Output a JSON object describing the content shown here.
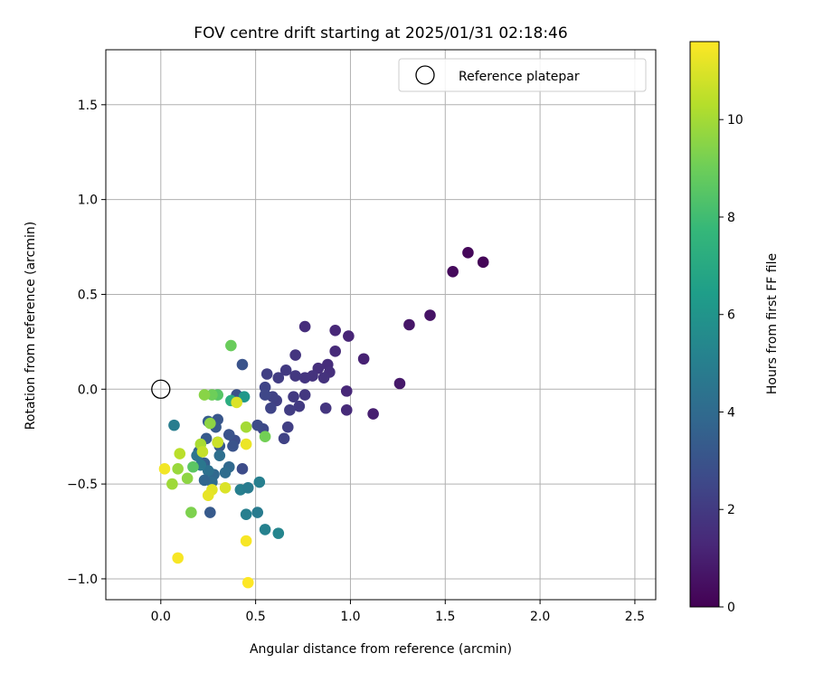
{
  "chart_data": {
    "type": "scatter",
    "title": "FOV centre drift starting at 2025/01/31 02:18:46",
    "xlabel": "Angular distance from reference (arcmin)",
    "ylabel": "Rotation from reference (arcmin)",
    "xlim": [
      -0.29,
      2.61
    ],
    "ylim": [
      -1.11,
      1.79
    ],
    "xticks": [
      0.0,
      0.5,
      1.0,
      1.5,
      2.0,
      2.5
    ],
    "xtick_labels": [
      "0.0",
      "0.5",
      "1.0",
      "1.5",
      "2.0",
      "2.5"
    ],
    "yticks": [
      -1.0,
      -0.5,
      0.0,
      0.5,
      1.0,
      1.5
    ],
    "ytick_labels": [
      "−1.0",
      "−0.5",
      "0.0",
      "0.5",
      "1.0",
      "1.5"
    ],
    "grid": true,
    "legend": {
      "placement": "upper-right",
      "entries": [
        "Reference platepar"
      ]
    },
    "reference_point": {
      "x": 0.0,
      "y": 0.0,
      "marker": "open-circle"
    },
    "colorbar": {
      "label": "Hours from first FF file",
      "min": 0,
      "max": 11.6,
      "ticks": [
        0,
        2,
        4,
        6,
        8,
        10
      ],
      "tick_labels": [
        "0",
        "2",
        "4",
        "6",
        "8",
        "10"
      ],
      "colormap": "viridis",
      "colormap_stops": [
        "#440154",
        "#482878",
        "#3e4989",
        "#31688e",
        "#26828e",
        "#1f9e89",
        "#35b779",
        "#6ece58",
        "#b5de2b",
        "#fde725"
      ]
    },
    "points": [
      {
        "x": 1.7,
        "y": 0.67,
        "c": 0.1
      },
      {
        "x": 1.62,
        "y": 0.72,
        "c": 0.2
      },
      {
        "x": 1.54,
        "y": 0.62,
        "c": 0.3
      },
      {
        "x": 1.42,
        "y": 0.39,
        "c": 0.6
      },
      {
        "x": 1.31,
        "y": 0.34,
        "c": 0.7
      },
      {
        "x": 1.26,
        "y": 0.03,
        "c": 0.8
      },
      {
        "x": 1.12,
        "y": -0.13,
        "c": 1.0
      },
      {
        "x": 1.07,
        "y": 0.16,
        "c": 1.1
      },
      {
        "x": 0.99,
        "y": 0.28,
        "c": 1.2
      },
      {
        "x": 0.98,
        "y": -0.01,
        "c": 1.3
      },
      {
        "x": 0.98,
        "y": -0.11,
        "c": 1.4
      },
      {
        "x": 0.92,
        "y": 0.31,
        "c": 1.3
      },
      {
        "x": 0.92,
        "y": 0.2,
        "c": 1.4
      },
      {
        "x": 0.88,
        "y": 0.13,
        "c": 1.5
      },
      {
        "x": 0.89,
        "y": 0.09,
        "c": 1.6
      },
      {
        "x": 0.86,
        "y": 0.06,
        "c": 1.7
      },
      {
        "x": 0.83,
        "y": 0.11,
        "c": 1.6
      },
      {
        "x": 0.8,
        "y": 0.07,
        "c": 1.7
      },
      {
        "x": 0.87,
        "y": -0.1,
        "c": 1.8
      },
      {
        "x": 0.76,
        "y": 0.33,
        "c": 1.5
      },
      {
        "x": 0.76,
        "y": 0.06,
        "c": 1.8
      },
      {
        "x": 0.76,
        "y": -0.03,
        "c": 1.9
      },
      {
        "x": 0.73,
        "y": -0.09,
        "c": 2.0
      },
      {
        "x": 0.71,
        "y": 0.18,
        "c": 1.8
      },
      {
        "x": 0.71,
        "y": 0.07,
        "c": 1.9
      },
      {
        "x": 0.7,
        "y": -0.04,
        "c": 2.0
      },
      {
        "x": 0.68,
        "y": -0.11,
        "c": 2.1
      },
      {
        "x": 0.67,
        "y": -0.2,
        "c": 2.2
      },
      {
        "x": 0.66,
        "y": 0.1,
        "c": 2.0
      },
      {
        "x": 0.65,
        "y": -0.26,
        "c": 2.3
      },
      {
        "x": 0.62,
        "y": 0.06,
        "c": 2.1
      },
      {
        "x": 0.61,
        "y": -0.06,
        "c": 2.2
      },
      {
        "x": 0.59,
        "y": -0.04,
        "c": 2.3
      },
      {
        "x": 0.58,
        "y": -0.1,
        "c": 2.4
      },
      {
        "x": 0.56,
        "y": 0.08,
        "c": 2.2
      },
      {
        "x": 0.55,
        "y": 0.01,
        "c": 2.4
      },
      {
        "x": 0.55,
        "y": -0.03,
        "c": 2.5
      },
      {
        "x": 0.54,
        "y": -0.21,
        "c": 2.6
      },
      {
        "x": 0.51,
        "y": -0.19,
        "c": 2.7
      },
      {
        "x": 0.43,
        "y": 0.13,
        "c": 3.0
      },
      {
        "x": 0.4,
        "y": -0.03,
        "c": 2.9
      },
      {
        "x": 0.39,
        "y": -0.27,
        "c": 2.8
      },
      {
        "x": 0.38,
        "y": -0.3,
        "c": 3.0
      },
      {
        "x": 0.36,
        "y": -0.24,
        "c": 3.0
      },
      {
        "x": 0.43,
        "y": -0.42,
        "c": 2.7
      },
      {
        "x": 0.3,
        "y": -0.16,
        "c": 3.1
      },
      {
        "x": 0.31,
        "y": -0.3,
        "c": 3.2
      },
      {
        "x": 0.29,
        "y": -0.2,
        "c": 3.3
      },
      {
        "x": 0.25,
        "y": -0.17,
        "c": 3.4
      },
      {
        "x": 0.24,
        "y": -0.26,
        "c": 3.3
      },
      {
        "x": 0.23,
        "y": -0.39,
        "c": 3.5
      },
      {
        "x": 0.2,
        "y": -0.33,
        "c": 3.6
      },
      {
        "x": 0.28,
        "y": -0.45,
        "c": 3.9
      },
      {
        "x": 0.26,
        "y": -0.65,
        "c": 3.3
      },
      {
        "x": 0.36,
        "y": -0.41,
        "c": 3.9
      },
      {
        "x": 0.34,
        "y": -0.44,
        "c": 4.1
      },
      {
        "x": 0.31,
        "y": -0.35,
        "c": 4.2
      },
      {
        "x": 0.3,
        "y": -0.28,
        "c": 4.3
      },
      {
        "x": 0.27,
        "y": -0.49,
        "c": 4.1
      },
      {
        "x": 0.25,
        "y": -0.43,
        "c": 4.3
      },
      {
        "x": 0.23,
        "y": -0.48,
        "c": 3.8
      },
      {
        "x": 0.19,
        "y": -0.35,
        "c": 4.5
      },
      {
        "x": 0.21,
        "y": -0.4,
        "c": 4.6
      },
      {
        "x": 0.07,
        "y": -0.19,
        "c": 4.9
      },
      {
        "x": 0.42,
        "y": -0.53,
        "c": 5.0
      },
      {
        "x": 0.46,
        "y": -0.52,
        "c": 4.8
      },
      {
        "x": 0.52,
        "y": -0.49,
        "c": 5.0
      },
      {
        "x": 0.45,
        "y": -0.66,
        "c": 5.0
      },
      {
        "x": 0.51,
        "y": -0.65,
        "c": 4.8
      },
      {
        "x": 0.55,
        "y": -0.74,
        "c": 5.1
      },
      {
        "x": 0.62,
        "y": -0.76,
        "c": 5.3
      },
      {
        "x": 0.44,
        "y": -0.04,
        "c": 6.1
      },
      {
        "x": 0.37,
        "y": -0.06,
        "c": 7.2
      },
      {
        "x": 0.3,
        "y": -0.03,
        "c": 8.5
      },
      {
        "x": 0.27,
        "y": -0.03,
        "c": 9.0
      },
      {
        "x": 0.23,
        "y": -0.03,
        "c": 9.5
      },
      {
        "x": 0.37,
        "y": 0.23,
        "c": 8.9
      },
      {
        "x": 0.55,
        "y": -0.25,
        "c": 9.1
      },
      {
        "x": 0.17,
        "y": -0.41,
        "c": 8.6
      },
      {
        "x": 0.16,
        "y": -0.65,
        "c": 9.3
      },
      {
        "x": 0.14,
        "y": -0.47,
        "c": 9.6
      },
      {
        "x": 0.09,
        "y": -0.42,
        "c": 9.8
      },
      {
        "x": 0.06,
        "y": -0.5,
        "c": 9.9
      },
      {
        "x": 0.26,
        "y": -0.18,
        "c": 9.6
      },
      {
        "x": 0.45,
        "y": -0.2,
        "c": 10.0
      },
      {
        "x": 0.21,
        "y": -0.29,
        "c": 10.1
      },
      {
        "x": 0.1,
        "y": -0.34,
        "c": 10.4
      },
      {
        "x": 0.22,
        "y": -0.33,
        "c": 10.6
      },
      {
        "x": 0.3,
        "y": -0.28,
        "c": 10.7
      },
      {
        "x": 0.34,
        "y": -0.52,
        "c": 11.0
      },
      {
        "x": 0.27,
        "y": -0.53,
        "c": 11.1
      },
      {
        "x": 0.25,
        "y": -0.56,
        "c": 11.2
      },
      {
        "x": 0.4,
        "y": -0.07,
        "c": 11.0
      },
      {
        "x": 0.45,
        "y": -0.29,
        "c": 11.3
      },
      {
        "x": 0.02,
        "y": -0.42,
        "c": 11.4
      },
      {
        "x": 0.45,
        "y": -0.8,
        "c": 11.5
      },
      {
        "x": 0.09,
        "y": -0.89,
        "c": 11.5
      },
      {
        "x": 0.46,
        "y": -1.02,
        "c": 11.6
      }
    ]
  }
}
